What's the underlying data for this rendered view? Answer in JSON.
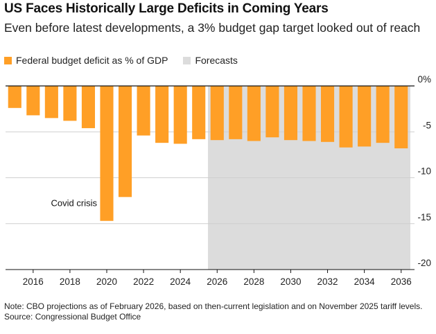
{
  "title": "US Faces Historically Large Deficits in Coming Years",
  "subtitle": "Even before latest developments, a 3% budget gap target looked out of reach",
  "legend": {
    "deficit": {
      "label": "Federal budget deficit as % of GDP",
      "color": "#FF9F26"
    },
    "forecast": {
      "label": "Forecasts",
      "color": "#DCDCDC"
    }
  },
  "footer": {
    "note": "Note: CBO projections as of February 2026, based on then-current legislation and on November 2025 tariff levels.",
    "source": "Source: Congressional Budget Office"
  },
  "chart_data": {
    "type": "bar",
    "title": "US Faces Historically Large Deficits in Coming Years",
    "xlabel": "",
    "ylabel": "Federal budget deficit as % of GDP",
    "categories": [
      2015,
      2016,
      2017,
      2018,
      2019,
      2020,
      2021,
      2022,
      2023,
      2024,
      2025,
      2026,
      2027,
      2028,
      2029,
      2030,
      2031,
      2032,
      2033,
      2034,
      2035,
      2036
    ],
    "values": [
      -2.4,
      -3.2,
      -3.5,
      -3.8,
      -4.6,
      -14.7,
      -12.1,
      -5.4,
      -6.2,
      -6.3,
      -5.8,
      -5.9,
      -5.8,
      -6.0,
      -5.6,
      -5.9,
      -6.0,
      -6.1,
      -6.7,
      -6.6,
      -6.2,
      -6.8
    ],
    "forecast_range": [
      2026,
      2036
    ],
    "ylim": [
      -20,
      0
    ],
    "yticks": [
      0,
      -5,
      -10,
      -15,
      -20
    ],
    "ytick_labels": [
      "0%",
      "-5",
      "-10",
      "-15",
      "-20"
    ],
    "xticks": [
      2016,
      2018,
      2020,
      2022,
      2024,
      2026,
      2028,
      2030,
      2032,
      2034,
      2036
    ],
    "annotations": [
      {
        "text": "Covid crisis",
        "x": 2020
      }
    ],
    "grid": true,
    "bar_color": "#FF9F26",
    "forecast_color": "#DCDCDC"
  }
}
